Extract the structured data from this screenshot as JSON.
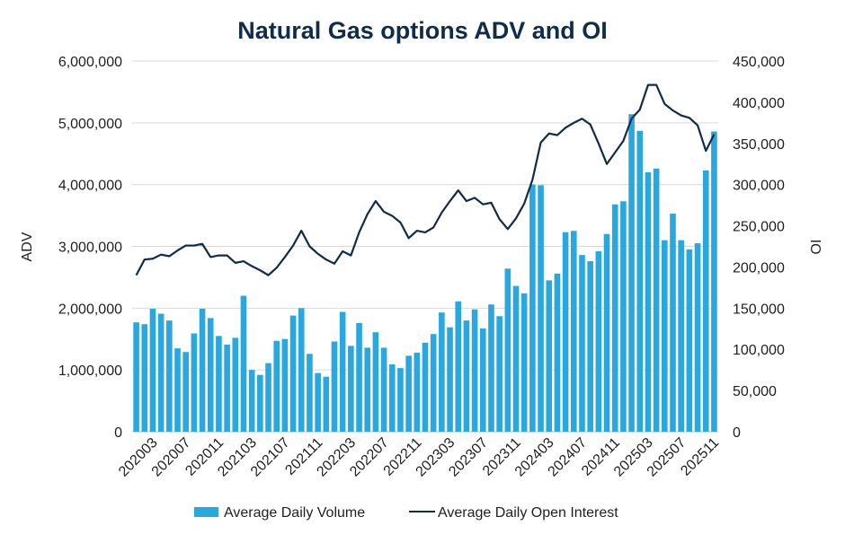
{
  "chart_data": {
    "type": "bar",
    "title": "Natural Gas options ADV and OI",
    "ylabel": "ADV",
    "y2label": "OI",
    "ylim": [
      0,
      6000000
    ],
    "y2lim": [
      0,
      450000
    ],
    "yticks": [
      "0",
      "1,000,000",
      "2,000,000",
      "3,000,000",
      "4,000,000",
      "5,000,000",
      "6,000,000"
    ],
    "y2ticks": [
      "0",
      "50,000",
      "100,000",
      "150,000",
      "200,000",
      "250,000",
      "300,000",
      "350,000",
      "400,000",
      "450,000"
    ],
    "xtick_labels": [
      "202003",
      "202007",
      "202011",
      "202103",
      "202107",
      "202111",
      "202203",
      "202207",
      "202211",
      "202303",
      "202307",
      "202311",
      "202403",
      "202407",
      "202411",
      "202503",
      "202507",
      "202511"
    ],
    "colors": {
      "bar": "#29a8df",
      "line": "#0f2c4a",
      "title": "#0f2c4a"
    },
    "legend": {
      "placement": "bottom-center"
    },
    "categories": [
      "202001",
      "202002",
      "202003",
      "202004",
      "202005",
      "202006",
      "202007",
      "202008",
      "202009",
      "202010",
      "202011",
      "202012",
      "202101",
      "202102",
      "202103",
      "202104",
      "202105",
      "202106",
      "202107",
      "202108",
      "202109",
      "202110",
      "202111",
      "202112",
      "202201",
      "202202",
      "202203",
      "202204",
      "202205",
      "202206",
      "202207",
      "202208",
      "202209",
      "202210",
      "202211",
      "202212",
      "202301",
      "202302",
      "202303",
      "202304",
      "202305",
      "202306",
      "202307",
      "202308",
      "202309",
      "202310",
      "202311",
      "202312",
      "202401",
      "202402",
      "202403",
      "202404",
      "202405",
      "202406",
      "202407",
      "202408",
      "202409",
      "202410",
      "202411",
      "202412",
      "202501",
      "202502",
      "202503",
      "202504",
      "202505",
      "202506",
      "202507",
      "202508",
      "202509",
      "202510",
      "202511"
    ],
    "series": [
      {
        "name": "Average Daily Volume",
        "type": "bar",
        "axis": "left",
        "values": [
          1770000,
          1740000,
          1990000,
          1910000,
          1800000,
          1350000,
          1290000,
          1590000,
          1990000,
          1840000,
          1550000,
          1410000,
          1520000,
          2200000,
          1000000,
          920000,
          1110000,
          1470000,
          1500000,
          1880000,
          2000000,
          1260000,
          950000,
          890000,
          1460000,
          1940000,
          1390000,
          1760000,
          1360000,
          1610000,
          1360000,
          1090000,
          1030000,
          1230000,
          1280000,
          1440000,
          1580000,
          1930000,
          1690000,
          2110000,
          1800000,
          1980000,
          1670000,
          2060000,
          1870000,
          2640000,
          2360000,
          2240000,
          4000000,
          3990000,
          2450000,
          2560000,
          3230000,
          3250000,
          2860000,
          2760000,
          2920000,
          3200000,
          3680000,
          3730000,
          5140000,
          4870000,
          4200000,
          4260000,
          3100000,
          3530000,
          3100000,
          2950000,
          3050000,
          4230000,
          4860000
        ]
      },
      {
        "name": "Average Daily Open Interest",
        "type": "line",
        "axis": "right",
        "values": [
          190000,
          209000,
          210000,
          215000,
          213000,
          220000,
          226000,
          226000,
          228000,
          212000,
          214000,
          214000,
          205000,
          207000,
          201000,
          196000,
          190000,
          199000,
          212000,
          226000,
          244000,
          225000,
          216000,
          209000,
          204000,
          219000,
          214000,
          242000,
          264000,
          280000,
          267000,
          262000,
          254000,
          235000,
          244000,
          242000,
          248000,
          266000,
          280000,
          293000,
          280000,
          284000,
          276000,
          278000,
          258000,
          246000,
          259000,
          277000,
          306000,
          351000,
          362000,
          360000,
          369000,
          375000,
          380000,
          373000,
          350000,
          325000,
          339000,
          353000,
          380000,
          391000,
          421000,
          421000,
          398000,
          390000,
          384000,
          381000,
          372000,
          341000,
          361000
        ]
      }
    ]
  }
}
